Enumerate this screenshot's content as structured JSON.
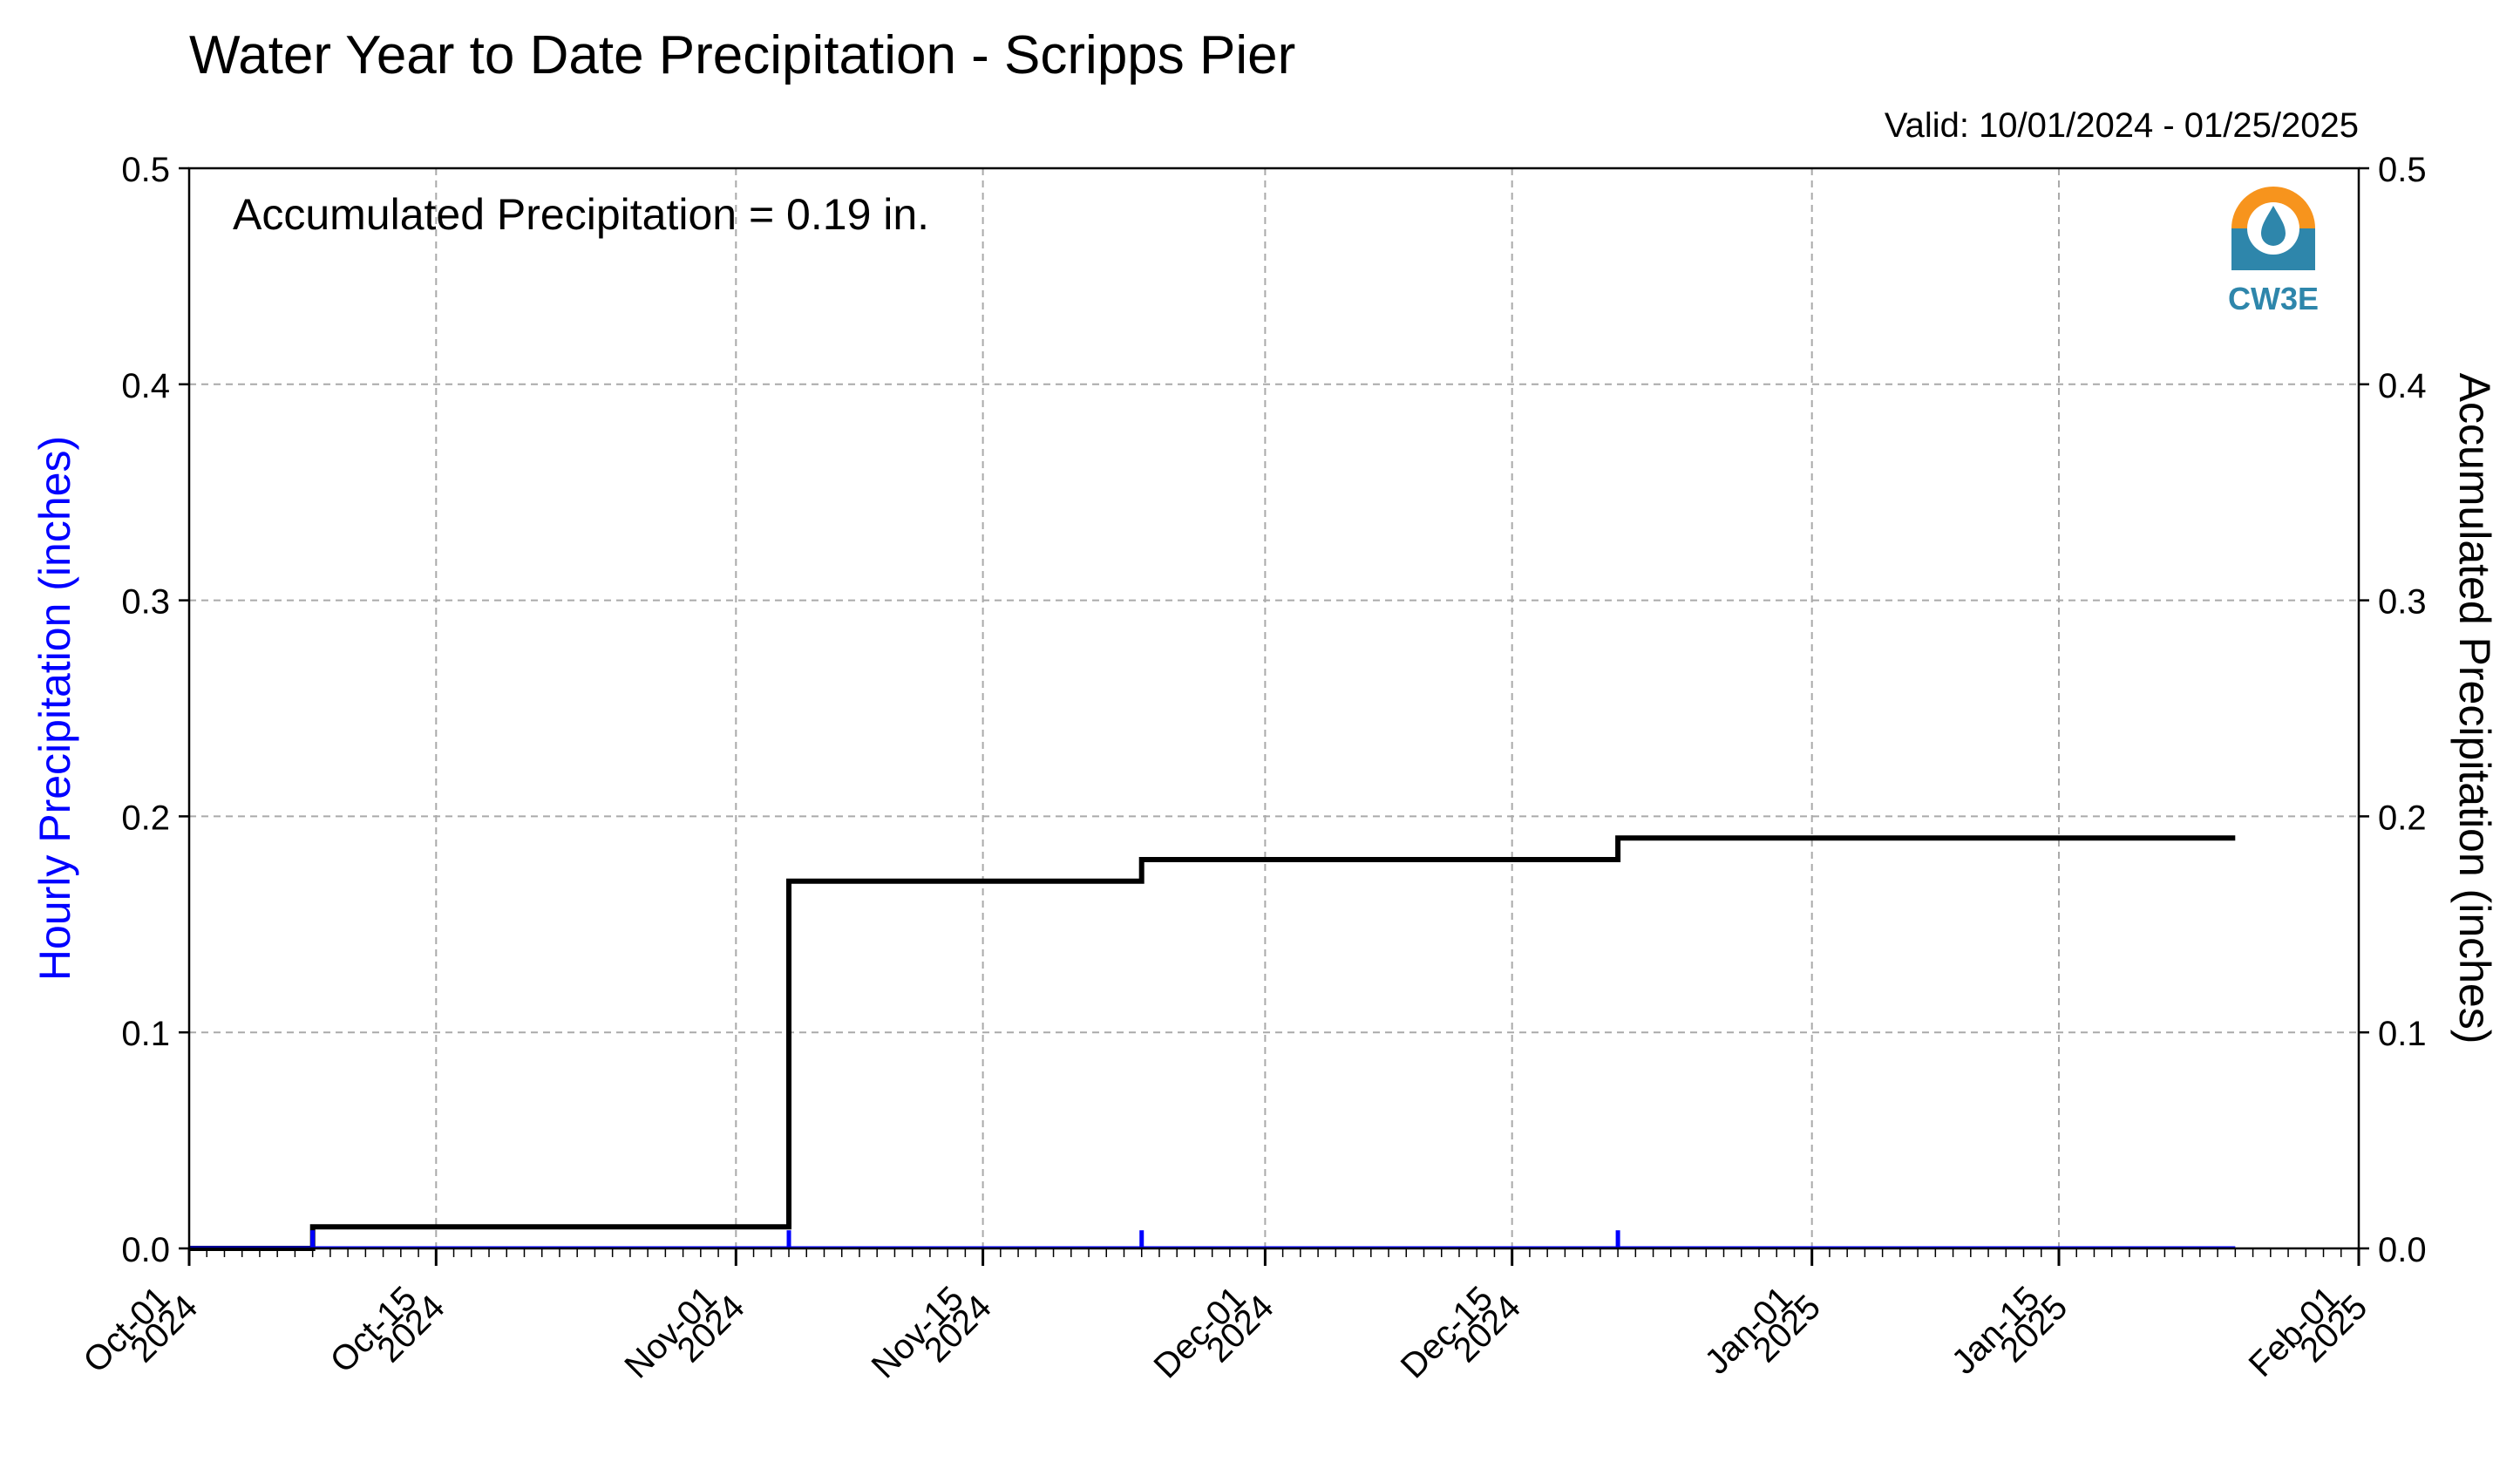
{
  "chart_data": {
    "type": "line",
    "title": "Water Year to Date Precipitation - Scripps Pier",
    "valid_text": "Valid: 10/01/2024 - 01/25/2025",
    "annotation": "Accumulated Precipitation = 0.19 in.",
    "ylabel_left": "Hourly Precipitation (inches)",
    "ylabel_right": "Accumulated Precipitation (inches)",
    "ylim": [
      0,
      0.5
    ],
    "xlim": [
      "2024-10-01",
      "2025-02-01"
    ],
    "grid": true,
    "yticks": [
      "0.0",
      "0.1",
      "0.2",
      "0.3",
      "0.4",
      "0.5"
    ],
    "xticks": [
      {
        "date": "2024-10-01",
        "line1": "Oct-01",
        "line2": "2024"
      },
      {
        "date": "2024-10-15",
        "line1": "Oct-15",
        "line2": "2024"
      },
      {
        "date": "2024-11-01",
        "line1": "Nov-01",
        "line2": "2024"
      },
      {
        "date": "2024-11-15",
        "line1": "Nov-15",
        "line2": "2024"
      },
      {
        "date": "2024-12-01",
        "line1": "Dec-01",
        "line2": "2024"
      },
      {
        "date": "2024-12-15",
        "line1": "Dec-15",
        "line2": "2024"
      },
      {
        "date": "2025-01-01",
        "line1": "Jan-01",
        "line2": "2025"
      },
      {
        "date": "2025-01-15",
        "line1": "Jan-15",
        "line2": "2025"
      },
      {
        "date": "2025-02-01",
        "line1": "Feb-01",
        "line2": "2025"
      }
    ],
    "series": [
      {
        "axis": "right",
        "color": "#000000",
        "x": [
          "2024-10-01",
          "2024-10-08",
          "2024-10-08",
          "2024-11-04",
          "2024-11-04",
          "2024-11-24",
          "2024-11-24",
          "2024-12-21",
          "2024-12-21",
          "2025-01-25"
        ],
        "y": [
          0.0,
          0.0,
          0.01,
          0.01,
          0.17,
          0.17,
          0.18,
          0.18,
          0.19,
          0.19
        ]
      },
      {
        "axis": "left",
        "color": "#0000ff",
        "x": [
          "2024-10-08",
          "2024-11-04",
          "2024-11-24",
          "2024-12-21"
        ],
        "y": [
          0.01,
          0.01,
          0.01,
          0.01
        ]
      }
    ]
  },
  "logo": {
    "text": "CW3E",
    "orange": "#F7941D",
    "teal": "#2E86AB"
  }
}
